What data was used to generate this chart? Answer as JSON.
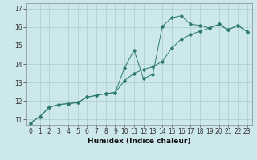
{
  "xlabel": "Humidex (Indice chaleur)",
  "background_color": "#cde8ec",
  "grid_color": "#aacccc",
  "line_color": "#2d7a6e",
  "xlim": [
    -0.5,
    23.5
  ],
  "ylim": [
    10.7,
    17.3
  ],
  "yticks": [
    11,
    12,
    13,
    14,
    15,
    16,
    17
  ],
  "xticks": [
    0,
    1,
    2,
    3,
    4,
    5,
    6,
    7,
    8,
    9,
    10,
    11,
    12,
    13,
    14,
    15,
    16,
    17,
    18,
    19,
    20,
    21,
    22,
    23
  ],
  "curve1_x": [
    0,
    1,
    2,
    3,
    4,
    5,
    6,
    7,
    8,
    9,
    10,
    11,
    12,
    13,
    14,
    15,
    16,
    17,
    18,
    19,
    20,
    21,
    22,
    23
  ],
  "curve1_y": [
    10.8,
    11.15,
    11.65,
    11.8,
    11.85,
    11.9,
    12.2,
    12.3,
    12.4,
    12.45,
    13.8,
    14.75,
    13.2,
    13.45,
    16.05,
    16.5,
    16.62,
    16.15,
    16.1,
    15.95,
    16.15,
    15.85,
    16.1,
    15.75
  ],
  "curve2_x": [
    0,
    1,
    2,
    3,
    4,
    5,
    6,
    7,
    8,
    9,
    10,
    11,
    12,
    13,
    14,
    15,
    16,
    17,
    18,
    19,
    20,
    21,
    22,
    23
  ],
  "curve2_y": [
    10.8,
    11.15,
    11.65,
    11.8,
    11.85,
    11.9,
    12.2,
    12.3,
    12.4,
    12.45,
    13.1,
    13.5,
    13.7,
    13.85,
    14.15,
    14.85,
    15.35,
    15.6,
    15.78,
    15.95,
    16.15,
    15.85,
    16.1,
    15.75
  ],
  "xlabel_fontsize": 6.5,
  "tick_fontsize": 5.5
}
